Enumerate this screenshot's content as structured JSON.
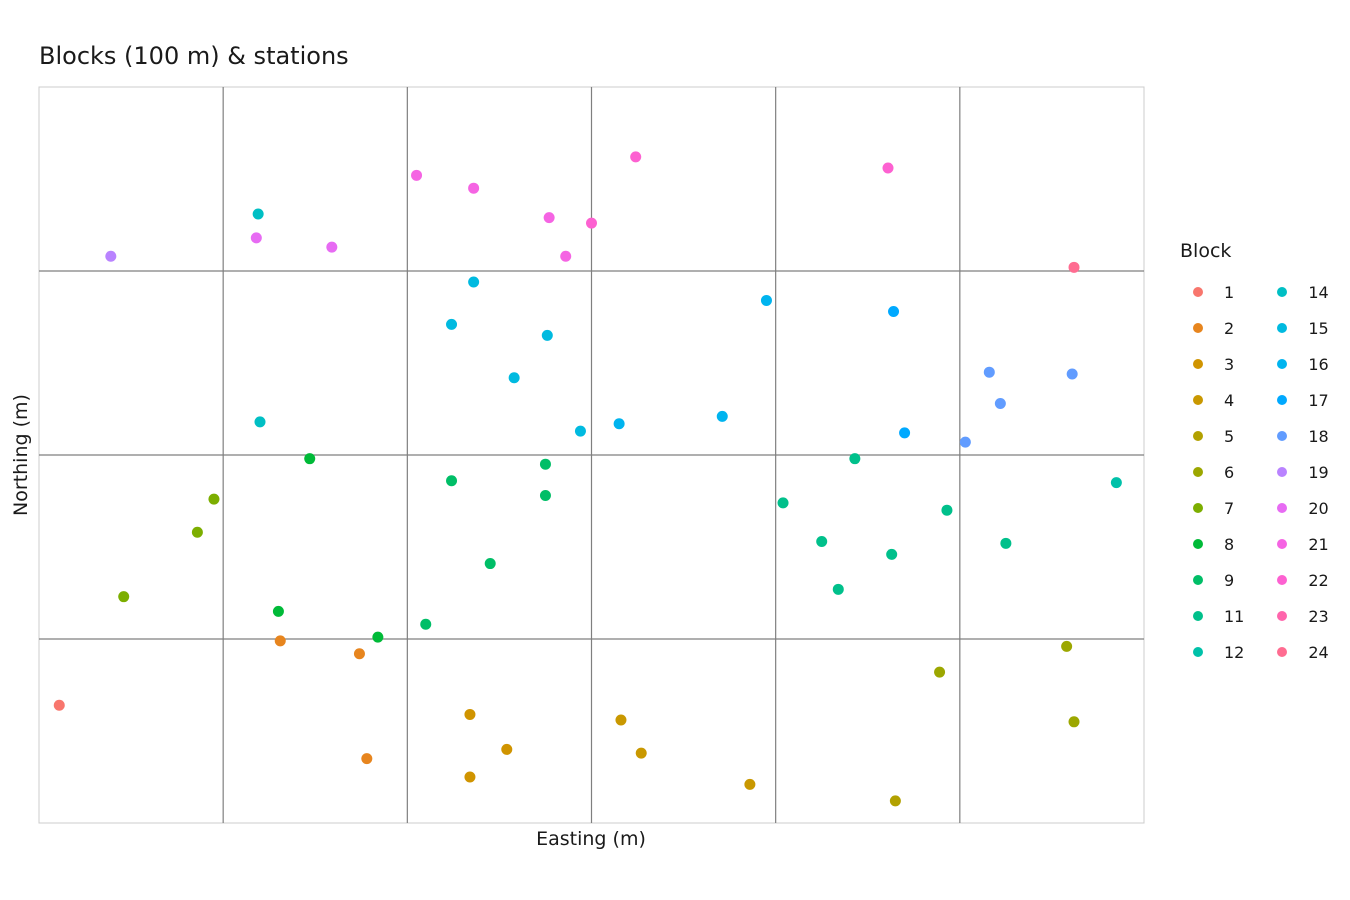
{
  "chart_data": {
    "type": "scatter",
    "title": "Blocks (100 m) & stations",
    "xlabel": "Easting (m)",
    "ylabel": "Northing (m)",
    "xlim": [
      0,
      600
    ],
    "ylim": [
      0,
      400
    ],
    "grid": true,
    "grid_x_breaks": [
      100,
      200,
      300,
      400,
      500
    ],
    "grid_y_breaks": [
      100,
      200,
      300
    ],
    "legend": {
      "title": "Block",
      "placement": "right",
      "columns": 2
    },
    "series": [
      {
        "name": "1",
        "color": "#F8766D",
        "points": [
          [
            11,
            64
          ]
        ]
      },
      {
        "name": "2",
        "color": "#E7851E",
        "points": [
          [
            131,
            99
          ],
          [
            174,
            92
          ],
          [
            178,
            35
          ]
        ]
      },
      {
        "name": "3",
        "color": "#D09400",
        "points": [
          [
            234,
            59
          ],
          [
            234,
            25
          ],
          [
            254,
            40
          ]
        ]
      },
      {
        "name": "4",
        "color": "#C99800",
        "points": [
          [
            316,
            56
          ],
          [
            327,
            38
          ],
          [
            386,
            21
          ]
        ]
      },
      {
        "name": "5",
        "color": "#B2A100",
        "points": [
          [
            465,
            12
          ]
        ]
      },
      {
        "name": "6",
        "color": "#9CA700",
        "points": [
          [
            489,
            82
          ],
          [
            558,
            96
          ],
          [
            562,
            55
          ]
        ]
      },
      {
        "name": "7",
        "color": "#7CAE00",
        "points": [
          [
            46,
            123
          ],
          [
            86,
            158
          ],
          [
            95,
            176
          ]
        ]
      },
      {
        "name": "8",
        "color": "#00BA38",
        "points": [
          [
            130,
            115
          ],
          [
            147,
            198
          ],
          [
            184,
            101
          ]
        ]
      },
      {
        "name": "9",
        "color": "#00BE67",
        "points": [
          [
            210,
            108
          ],
          [
            224,
            186
          ],
          [
            245,
            141
          ],
          [
            275,
            195
          ],
          [
            275,
            178
          ]
        ]
      },
      {
        "name": "11",
        "color": "#00C08B",
        "points": [
          [
            404,
            174
          ],
          [
            425,
            153
          ],
          [
            434,
            127
          ],
          [
            443,
            198
          ],
          [
            463,
            146
          ],
          [
            493,
            170
          ],
          [
            525,
            152
          ]
        ]
      },
      {
        "name": "12",
        "color": "#00C1A9",
        "points": [
          [
            585,
            185
          ]
        ]
      },
      {
        "name": "14",
        "color": "#00BFC4",
        "points": [
          [
            119,
            331
          ],
          [
            120,
            218
          ]
        ]
      },
      {
        "name": "15",
        "color": "#00BAE0",
        "points": [
          [
            224,
            271
          ],
          [
            236,
            294
          ],
          [
            258,
            242
          ],
          [
            276,
            265
          ],
          [
            294,
            213
          ]
        ]
      },
      {
        "name": "16",
        "color": "#00B4EF",
        "points": [
          [
            315,
            217
          ],
          [
            371,
            221
          ],
          [
            395,
            284
          ]
        ]
      },
      {
        "name": "17",
        "color": "#00A9FF",
        "points": [
          [
            464,
            278
          ],
          [
            470,
            212
          ]
        ]
      },
      {
        "name": "18",
        "color": "#619CFF",
        "points": [
          [
            503,
            207
          ],
          [
            516,
            245
          ],
          [
            522,
            228
          ],
          [
            561,
            244
          ]
        ]
      },
      {
        "name": "19",
        "color": "#B983FF",
        "points": [
          [
            39,
            308
          ]
        ]
      },
      {
        "name": "20",
        "color": "#E76BF3",
        "points": [
          [
            118,
            318
          ],
          [
            159,
            313
          ]
        ]
      },
      {
        "name": "21",
        "color": "#F564E3",
        "points": [
          [
            205,
            352
          ],
          [
            236,
            345
          ],
          [
            277,
            329
          ],
          [
            286,
            308
          ]
        ]
      },
      {
        "name": "22",
        "color": "#FD61D1",
        "points": [
          [
            300,
            326
          ],
          [
            324,
            362
          ],
          [
            461,
            356
          ]
        ]
      },
      {
        "name": "23",
        "color": "#FF65AC",
        "points": []
      },
      {
        "name": "24",
        "color": "#FF6C91",
        "points": [
          [
            562,
            302
          ]
        ]
      }
    ]
  }
}
